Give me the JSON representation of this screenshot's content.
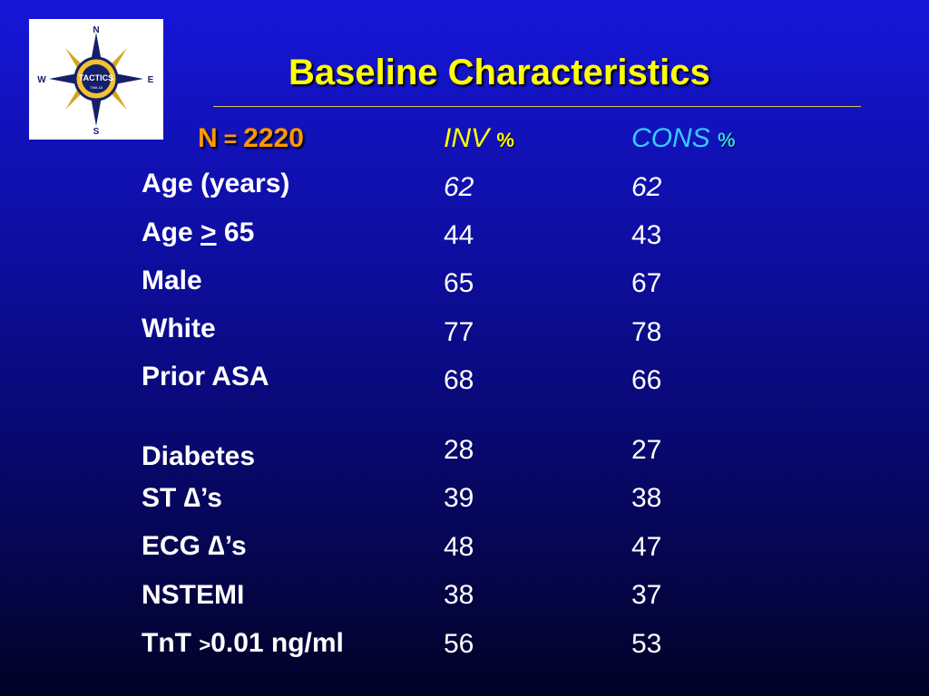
{
  "title": "Baseline Characteristics",
  "logo": {
    "text": "TACTICS",
    "subtext": "TIMI-18",
    "compass": {
      "north": "N",
      "south": "S",
      "east": "E",
      "west": "W"
    },
    "icon": "compass-icon"
  },
  "header": {
    "n_prefix": "N",
    "n_eq": " = ",
    "n_value": "2220",
    "inv": "INV",
    "cons": "CONS",
    "pct": "%"
  },
  "rows": [
    {
      "label": "Age (years)",
      "inv": "62",
      "cons": "62"
    },
    {
      "label_parts": [
        "Age ",
        ">",
        " 65"
      ],
      "inv": "44",
      "cons": "43"
    },
    {
      "label": "Male",
      "inv": "65",
      "cons": "67"
    },
    {
      "label": "White",
      "inv": "77",
      "cons": "78"
    },
    {
      "label": "Prior ASA",
      "inv": "68",
      "cons": "66"
    },
    {
      "label": "Diabetes",
      "inv": "28",
      "cons": "27"
    },
    {
      "label_parts": [
        "ST ",
        "∆",
        "’s"
      ],
      "inv": "39",
      "cons": "38"
    },
    {
      "label_parts": [
        "ECG ",
        "∆",
        "’s"
      ],
      "inv": "48",
      "cons": "47"
    },
    {
      "label": "NSTEMI",
      "inv": "38",
      "cons": "37"
    },
    {
      "label_parts": [
        "TnT ",
        ">",
        "0.01 ng/ml"
      ],
      "inv": "56",
      "cons": "53"
    }
  ],
  "colors": {
    "title": "#ffff00",
    "n_header": "#ff9900",
    "inv_header": "#ffff00",
    "cons_header": "#33ccff",
    "background_top": "#1616d8",
    "background_bottom": "#020226"
  }
}
